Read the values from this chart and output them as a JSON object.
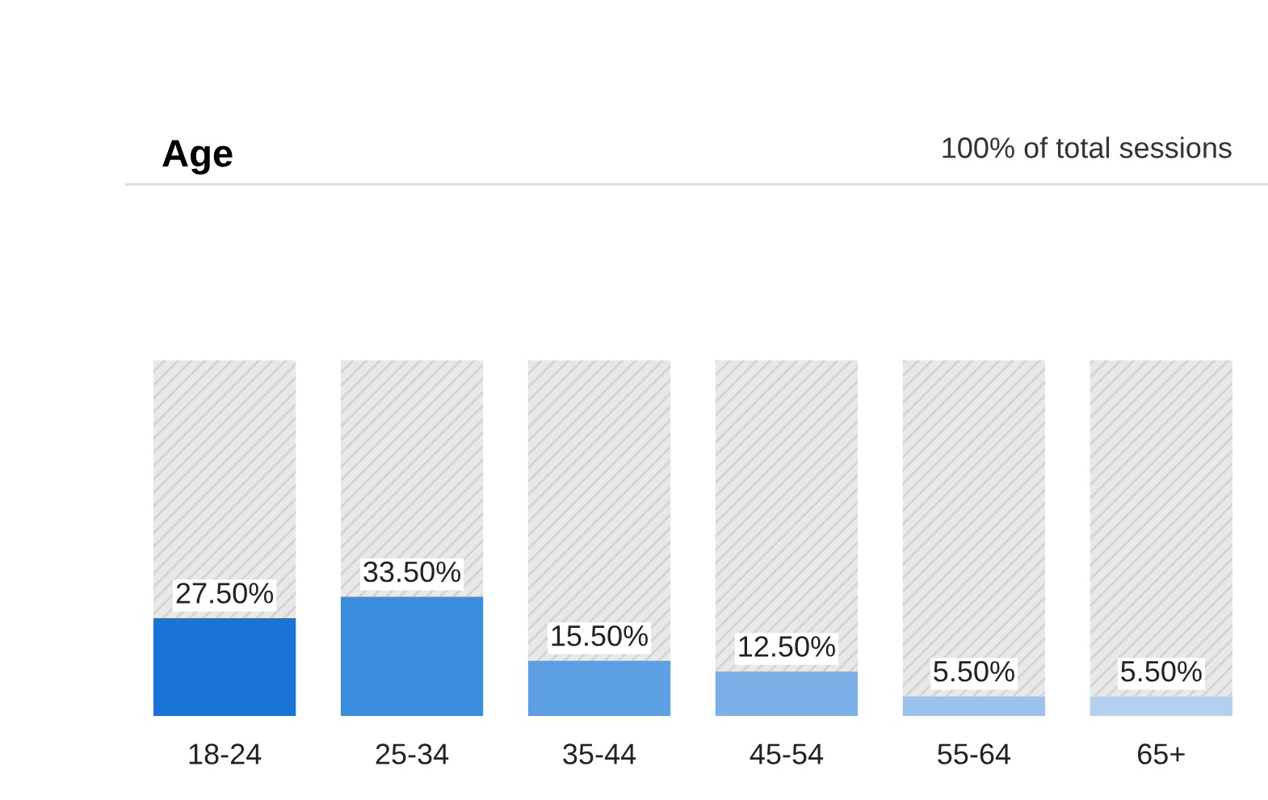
{
  "chart_data": {
    "type": "bar",
    "title": "Age",
    "annotations": [
      "100% of total sessions"
    ],
    "categories": [
      "18-24",
      "25-34",
      "35-44",
      "45-54",
      "55-64",
      "65+"
    ],
    "values": [
      27.5,
      33.5,
      15.5,
      12.5,
      5.5,
      5.5
    ],
    "colors": [
      "#1a73d8",
      "#3b8de0",
      "#5c9fe3",
      "#7bb0e8",
      "#9cc3ee",
      "#b3d0f0"
    ],
    "value_labels": [
      "27.50%",
      "33.50%",
      "15.50%",
      "12.50%",
      "5.50%",
      "5.50%"
    ],
    "ylim": [
      0,
      100
    ],
    "tick_labels": "x",
    "grid": false,
    "legend": false
  }
}
